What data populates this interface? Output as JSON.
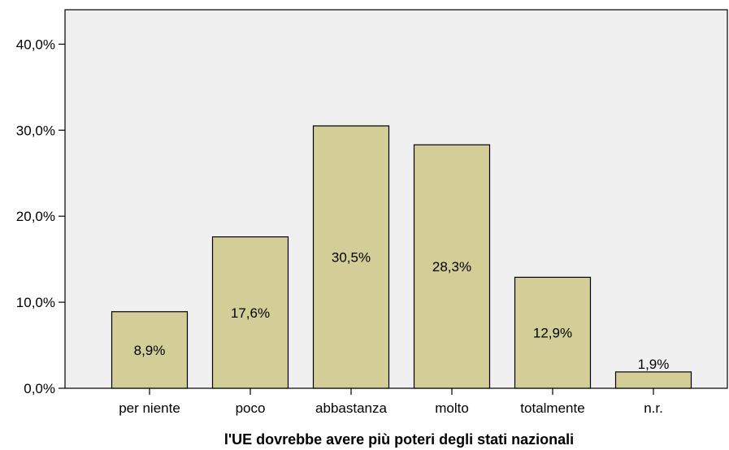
{
  "chart_data": {
    "type": "bar",
    "title": "",
    "xlabel": "l'UE dovrebbe avere più poteri degli stati nazionali",
    "ylabel": "",
    "categories": [
      "per niente",
      "poco",
      "abbastanza",
      "molto",
      "totalmente",
      "n.r."
    ],
    "values": [
      8.9,
      17.6,
      30.5,
      28.3,
      12.9,
      1.9
    ],
    "value_labels": [
      "8,9%",
      "17,6%",
      "30,5%",
      "28,3%",
      "12,9%",
      "1,9%"
    ],
    "ylim": [
      0,
      44
    ],
    "yticks": [
      0,
      10,
      20,
      30,
      40
    ],
    "ytick_labels": [
      "0,0%",
      "10,0%",
      "20,0%",
      "30,0%",
      "40,0%"
    ],
    "grid": false,
    "bar_color": "#d3cd97",
    "plot_background": "#f0f0f0"
  }
}
